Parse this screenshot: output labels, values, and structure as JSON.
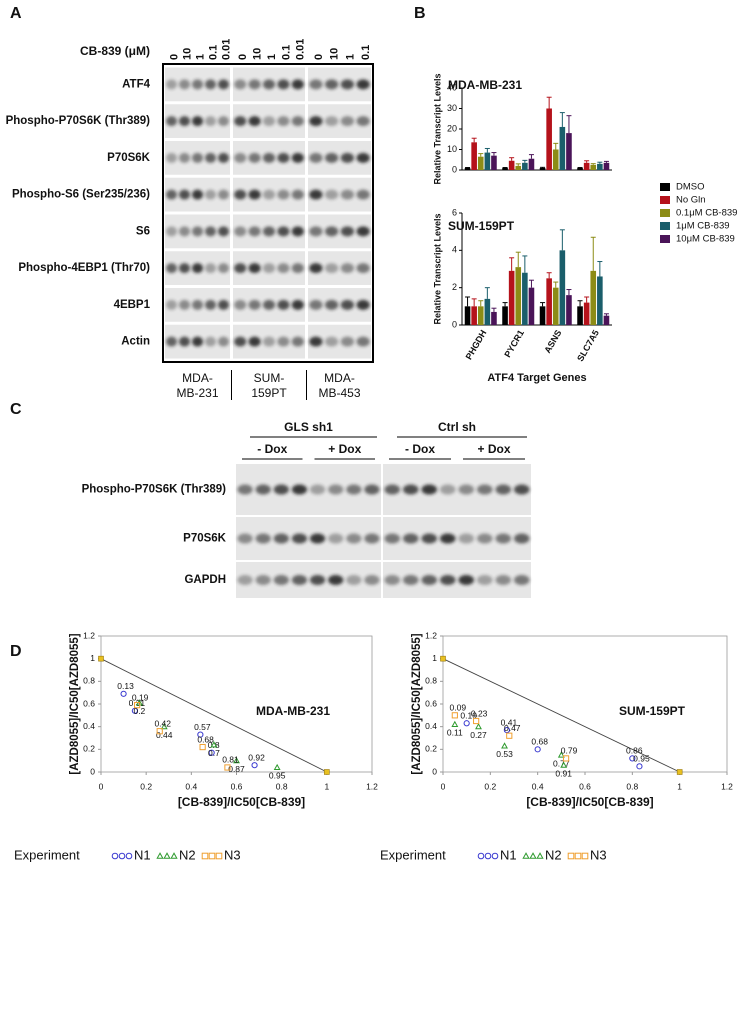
{
  "panel_labels": [
    "A",
    "B",
    "C",
    "D"
  ],
  "panel_a": {
    "treatment_label": "CB-839 (μM)",
    "concentrations": [
      [
        0,
        10,
        1,
        0.1,
        0.01
      ],
      [
        0,
        10,
        1,
        0.1,
        0.01
      ],
      [
        0,
        10,
        1,
        0.1
      ]
    ],
    "proteins": [
      "ATF4",
      "Phospho-P70S6K (Thr389)",
      "P70S6K",
      "Phospho-S6 (Ser235/236)",
      "S6",
      "Phospho-4EBP1 (Thr70)",
      "4EBP1",
      "Actin"
    ],
    "cell_lines": [
      [
        "MDA-",
        "MB-231"
      ],
      [
        "SUM-",
        "159PT"
      ],
      [
        "MDA-",
        "MB-453"
      ]
    ]
  },
  "panel_c": {
    "groups": [
      {
        "name": "GLS sh1",
        "conditions": [
          "- Dox",
          "+ Dox"
        ]
      },
      {
        "name": "Ctrl sh",
        "conditions": [
          "- Dox",
          "+ Dox"
        ]
      }
    ],
    "proteins": [
      "Phospho-P70S6K (Thr389)",
      "P70S6K",
      "GAPDH"
    ]
  },
  "chart_data": [
    {
      "type": "bar",
      "xlabel": "ATF4 Target Genes",
      "categories": [
        "PHGDH",
        "PYCR1",
        "ASNS",
        "SLC7A5"
      ],
      "series": [
        {
          "name": "DMSO",
          "color": "#000000"
        },
        {
          "name": "No Gln",
          "color": "#b5121b"
        },
        {
          "name": "0.1μM CB-839",
          "color": "#8c8c16"
        },
        {
          "name": "1μM CB-839",
          "color": "#1a5e6b"
        },
        {
          "name": "10μM CB-839",
          "color": "#4a1458"
        }
      ],
      "panels": [
        {
          "title": "MDA-MB-231",
          "ylabel": "Relative Transcript Levels",
          "ylim": [
            0,
            40
          ],
          "yticks": [
            0,
            10,
            20,
            30,
            40
          ],
          "values": [
            [
              1,
              1,
              1,
              1
            ],
            [
              13.5,
              4.5,
              30,
              3.5
            ],
            [
              6.5,
              2,
              10,
              2.5
            ],
            [
              8.5,
              3.5,
              21,
              3
            ],
            [
              7,
              5.5,
              18,
              3.5
            ]
          ],
          "errors": [
            [
              0.2,
              0.2,
              0.3,
              0.2
            ],
            [
              2,
              1.5,
              5.5,
              1
            ],
            [
              1.5,
              1,
              3,
              0.6
            ],
            [
              2,
              1.2,
              7,
              0.8
            ],
            [
              1.5,
              2,
              8.5,
              0.7
            ]
          ]
        },
        {
          "title": "SUM-159PT",
          "ylabel": "Relative Transcript Levels",
          "ylim": [
            0,
            6
          ],
          "yticks": [
            0,
            2,
            4,
            6
          ],
          "values": [
            [
              1,
              1,
              1,
              1
            ],
            [
              1,
              2.9,
              2.5,
              1.2
            ],
            [
              1,
              3.1,
              2,
              2.9
            ],
            [
              1.4,
              2.8,
              4,
              2.6
            ],
            [
              0.7,
              2,
              1.6,
              0.5
            ]
          ],
          "errors": [
            [
              0.5,
              0.2,
              0.2,
              0.3
            ],
            [
              0.4,
              0.7,
              0.3,
              0.3
            ],
            [
              0.3,
              0.8,
              0.3,
              1.8
            ],
            [
              0.6,
              0.9,
              1.1,
              0.8
            ],
            [
              0.2,
              0.4,
              0.3,
              0.1
            ]
          ]
        }
      ]
    },
    {
      "type": "scatter",
      "title": "MDA-MB-231",
      "xlabel": "[CB-839]/IC50[CB-839]",
      "ylabel": "[AZD8055]/IC50[AZD8055]",
      "xlim": [
        0,
        1.2
      ],
      "ylim": [
        0,
        1.2
      ],
      "xticks": [
        0,
        0.2,
        0.4,
        0.6,
        0.8,
        1,
        1.2
      ],
      "yticks": [
        0,
        0.2,
        0.4,
        0.6,
        0.8,
        1,
        1.2
      ],
      "legend_title": "Experiment",
      "endpoints": {
        "x": [
          0,
          1
        ],
        "y": [
          1,
          0
        ]
      },
      "series": [
        {
          "name": "N1",
          "color": "#3a3ad0",
          "marker": "circle",
          "x": [
            0.1,
            0.15,
            0.44,
            0.49,
            0.68
          ],
          "y": [
            0.69,
            0.54,
            0.33,
            0.17,
            0.06
          ],
          "labels": [
            0.13,
            0.31,
            0.57,
            0.8,
            0.92
          ]
        },
        {
          "name": "N2",
          "color": "#2e9a2e",
          "marker": "triangle",
          "x": [
            0.17,
            0.28,
            0.5,
            0.6,
            0.78
          ],
          "y": [
            0.61,
            0.4,
            0.24,
            0.1,
            0.04
          ],
          "labels": [
            0.2,
            0.44,
            0.7,
            0.87,
            0.95
          ]
        },
        {
          "name": "N3",
          "color": "#f0a030",
          "marker": "square",
          "x": [
            0.16,
            0.26,
            0.45,
            0.56
          ],
          "y": [
            0.59,
            0.36,
            0.22,
            0.04
          ],
          "labels": [
            0.19,
            0.42,
            0.68,
            0.81
          ]
        }
      ]
    },
    {
      "type": "scatter",
      "title": "SUM-159PT",
      "xlabel": "[CB-839]/IC50[CB-839]",
      "ylabel": "[AZD8055]/IC50[AZD8055]",
      "xlim": [
        0,
        1.2
      ],
      "ylim": [
        0,
        1.2
      ],
      "xticks": [
        0,
        0.2,
        0.4,
        0.6,
        0.8,
        1,
        1.2
      ],
      "yticks": [
        0,
        0.2,
        0.4,
        0.6,
        0.8,
        1,
        1.2
      ],
      "legend_title": "Experiment",
      "endpoints": {
        "x": [
          0,
          1
        ],
        "y": [
          1,
          0
        ]
      },
      "series": [
        {
          "name": "N1",
          "color": "#3a3ad0",
          "marker": "circle",
          "x": [
            0.1,
            0.27,
            0.4,
            0.8,
            0.83
          ],
          "y": [
            0.43,
            0.37,
            0.2,
            0.12,
            0.05
          ],
          "labels": [
            0.19,
            0.41,
            0.68,
            0.86,
            0.95
          ]
        },
        {
          "name": "N2",
          "color": "#2e9a2e",
          "marker": "triangle",
          "x": [
            0.05,
            0.15,
            0.26,
            0.5,
            0.51
          ],
          "y": [
            0.42,
            0.4,
            0.23,
            0.15,
            0.06
          ],
          "labels": [
            0.11,
            0.27,
            0.53,
            0.77,
            0.91
          ]
        },
        {
          "name": "N3",
          "color": "#f0a030",
          "marker": "square",
          "x": [
            0.05,
            0.14,
            0.28,
            0.52
          ],
          "y": [
            0.5,
            0.45,
            0.32,
            0.12
          ],
          "labels": [
            0.09,
            0.23,
            0.47,
            0.79
          ]
        }
      ]
    }
  ]
}
